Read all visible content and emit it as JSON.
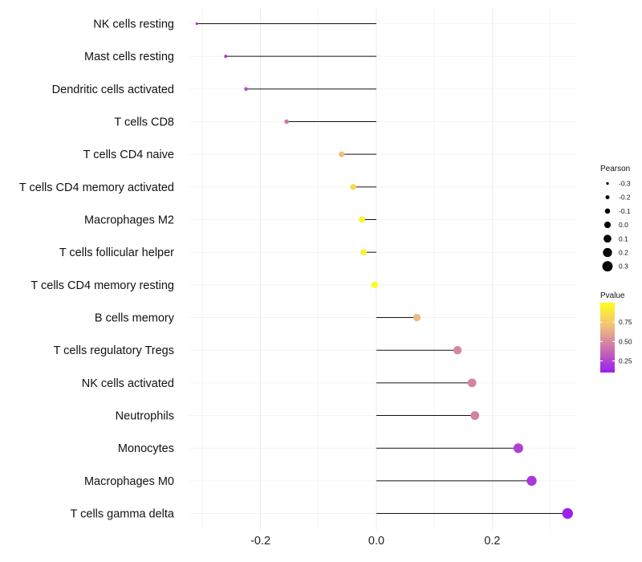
{
  "chart_data": {
    "type": "lollipop",
    "orientation": "horizontal",
    "categories": [
      "NK cells resting",
      "Mast cells resting",
      "Dendritic cells activated",
      "T cells CD8",
      "T cells CD4 naive",
      "T cells CD4 memory activated",
      "Macrophages M2",
      "T cells follicular helper",
      "T cells CD4 memory resting",
      "B cells memory",
      "T cells regulatory  Tregs",
      "NK cells activated",
      "Neutrophils",
      "Monocytes",
      "Macrophages M0",
      "T cells gamma delta"
    ],
    "pearson": [
      -0.31,
      -0.26,
      -0.225,
      -0.155,
      -0.06,
      -0.04,
      -0.025,
      -0.022,
      -0.003,
      0.07,
      0.14,
      0.165,
      0.17,
      0.245,
      0.268,
      0.33
    ],
    "pvalue": [
      0.2,
      0.22,
      0.26,
      0.45,
      0.75,
      0.85,
      0.95,
      0.95,
      1.0,
      0.72,
      0.5,
      0.48,
      0.48,
      0.23,
      0.2,
      0.12
    ],
    "xlim": [
      -0.31,
      0.33
    ],
    "xticks": [
      -0.2,
      0.0,
      0.2
    ],
    "xtick_labels": [
      "-0.2",
      "0.0",
      "0.2"
    ],
    "xlabel": "",
    "ylabel": "",
    "grid": true,
    "legend_size": {
      "title": "Pearson",
      "values": [
        -0.3,
        -0.2,
        -0.1,
        0.0,
        0.1,
        0.2,
        0.3
      ],
      "labels": [
        "-0.3",
        "-0.2",
        "-0.1",
        "0.0",
        "0.1",
        "0.2",
        "0.3"
      ]
    },
    "legend_color": {
      "title": "Pvalue",
      "breaks": [
        0.25,
        0.5,
        0.75
      ],
      "labels": [
        "0.25",
        "0.50",
        "0.75"
      ],
      "range": [
        0.1,
        1.0
      ],
      "colors": [
        "#9b1cf0",
        "#c96fb0",
        "#f2c07a",
        "#ffff1a"
      ]
    },
    "colors": {
      "stem": "#111111",
      "grid": "#ececec"
    }
  }
}
